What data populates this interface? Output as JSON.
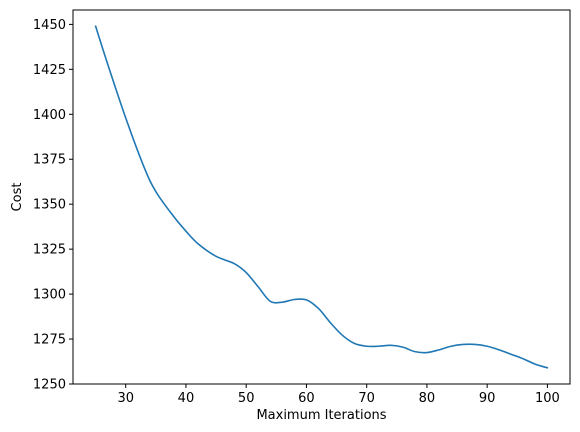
{
  "chart_data": {
    "type": "line",
    "title": "",
    "xlabel": "Maximum Iterations",
    "ylabel": "Cost",
    "xlim": [
      21.25,
      103.75
    ],
    "ylim": [
      1250,
      1458
    ],
    "x_ticks": [
      30,
      40,
      50,
      60,
      70,
      80,
      90,
      100
    ],
    "y_ticks": [
      1250,
      1275,
      1300,
      1325,
      1350,
      1375,
      1400,
      1425,
      1450
    ],
    "grid": false,
    "legend": "none",
    "series": [
      {
        "color": "#1f77b4",
        "x": [
          25,
          27,
          30,
          33,
          35,
          38,
          40,
          42,
          45,
          48,
          50,
          52,
          54,
          56,
          58,
          60,
          62,
          64,
          66,
          68,
          70,
          72,
          74,
          76,
          78,
          80,
          82,
          84,
          86,
          88,
          90,
          92,
          94,
          96,
          98,
          100
        ],
        "y": [
          1449,
          1428,
          1398,
          1371,
          1357,
          1343,
          1335,
          1328,
          1321,
          1317,
          1312,
          1304,
          1296,
          1295.5,
          1297,
          1296.8,
          1292,
          1284,
          1277,
          1272.5,
          1271,
          1271,
          1271.5,
          1270.5,
          1268,
          1267.5,
          1269,
          1271,
          1272,
          1272,
          1271,
          1269,
          1266.5,
          1264,
          1261,
          1259
        ]
      }
    ]
  }
}
